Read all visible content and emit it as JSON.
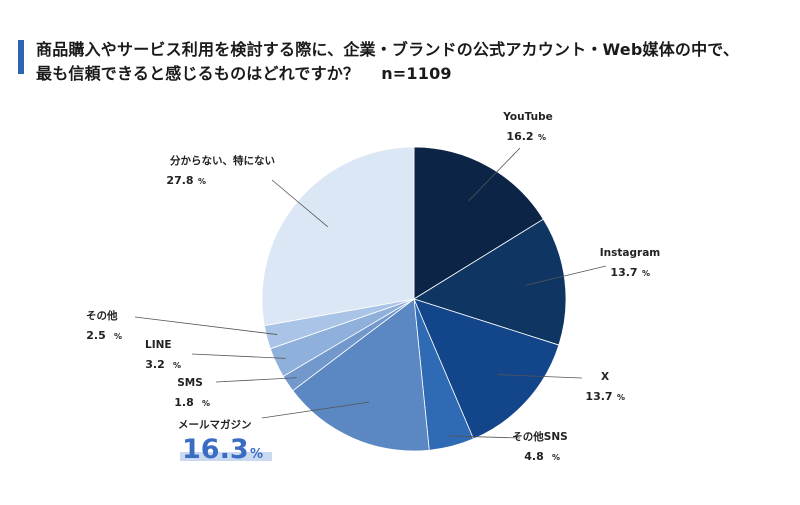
{
  "header": {
    "title_line1": "商品購入やサービス利用を検討する際に、企業・ブランドの公式アカウント・Web媒体の中で、",
    "title_line2": "最も信頼できると感じるものはどれですか？",
    "sample": "n=1109"
  },
  "chart_data": {
    "type": "pie",
    "title": "商品購入やサービス利用を検討する際に、企業・ブランドの公式アカウント・Web媒体の中で、最も信頼できると感じるものはどれですか？ n=1109",
    "unit": "%",
    "start": "12 o'clock",
    "direction": "clockwise",
    "highlighted": "メールマガジン",
    "slices": [
      {
        "label": "YouTube",
        "value": 16.2,
        "color": "#0c2547"
      },
      {
        "label": "Instagram",
        "value": 13.7,
        "color": "#0f3563"
      },
      {
        "label": "X",
        "value": 13.7,
        "color": "#13458a"
      },
      {
        "label": "その他SNS",
        "value": 4.8,
        "color": "#2f6ab5"
      },
      {
        "label": "メールマガジン",
        "value": 16.3,
        "color": "#5b88c2"
      },
      {
        "label": "SMS",
        "value": 1.8,
        "color": "#7298cc"
      },
      {
        "label": "LINE",
        "value": 3.2,
        "color": "#8eb0da"
      },
      {
        "label": "その他",
        "value": 2.5,
        "color": "#a9c4e6"
      },
      {
        "label": "分からない、特にない",
        "value": 27.8,
        "color": "#dce7f5"
      }
    ]
  }
}
